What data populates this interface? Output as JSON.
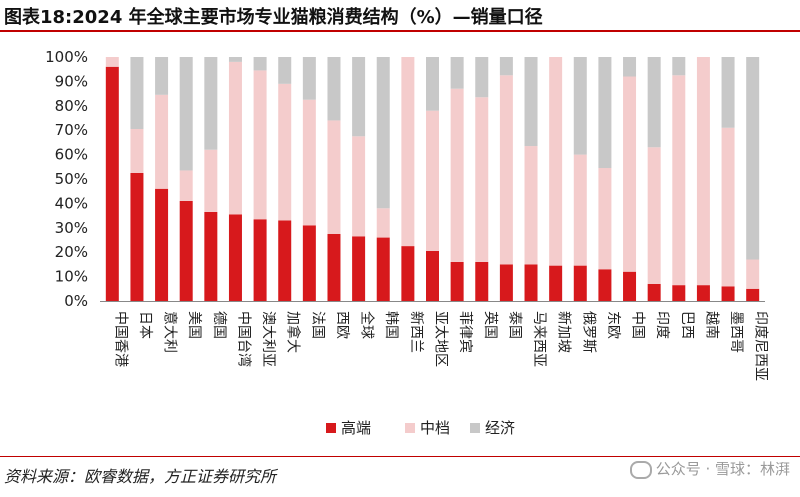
{
  "title": "图表18:2024 年全球主要市场专业猫粮消费结构（%）—销量口径",
  "source": "资料来源：欧睿数据，方正证券研究所",
  "watermark": "公众号 · 雪球：林湃",
  "colors": {
    "high": "#d7191c",
    "mid": "#f4cccc",
    "eco": "#c8c8c8",
    "accent": "#c00000"
  },
  "chart_data": {
    "type": "bar",
    "stacked": true,
    "title": "2024 年全球主要市场专业猫粮消费结构（%）—销量口径",
    "ylim": [
      0,
      100
    ],
    "yticks": [
      "0%",
      "10%",
      "20%",
      "30%",
      "40%",
      "50%",
      "60%",
      "70%",
      "80%",
      "90%",
      "100%"
    ],
    "legend_position": "bottom-center",
    "categories": [
      "中国香港",
      "日本",
      "意大利",
      "美国",
      "德国",
      "中国台湾",
      "澳大利亚",
      "加拿大",
      "法国",
      "西欧",
      "全球",
      "韩国",
      "新西兰",
      "亚太地区",
      "菲律宾",
      "英国",
      "泰国",
      "马来西亚",
      "新加坡",
      "俄罗斯",
      "东欧",
      "中国",
      "印度",
      "巴西",
      "越南",
      "墨西哥",
      "印度尼西亚"
    ],
    "series": [
      {
        "name": "高端",
        "values": [
          96,
          52.5,
          46,
          41,
          36.5,
          35.5,
          33.5,
          33,
          31,
          27.5,
          26.5,
          26,
          22.5,
          20.5,
          16,
          16,
          15,
          15,
          14.5,
          14.5,
          13,
          12,
          7,
          6.5,
          6.5,
          6,
          5
        ]
      },
      {
        "name": "中档",
        "values": [
          4,
          18,
          38.5,
          12.5,
          25.5,
          62.5,
          61,
          56,
          51.5,
          46.5,
          41,
          12,
          77.5,
          57.5,
          71,
          67.5,
          77.5,
          48.5,
          85.5,
          45.5,
          41.5,
          80,
          56,
          86,
          93.5,
          65,
          12
        ]
      },
      {
        "name": "经济",
        "values": [
          0,
          29.5,
          15.5,
          46.5,
          38,
          2,
          5.5,
          11,
          17.5,
          26,
          32.5,
          62,
          0,
          22,
          13,
          16.5,
          7.5,
          36.5,
          0,
          40,
          45.5,
          8,
          37,
          7.5,
          0,
          29,
          83
        ]
      }
    ]
  }
}
